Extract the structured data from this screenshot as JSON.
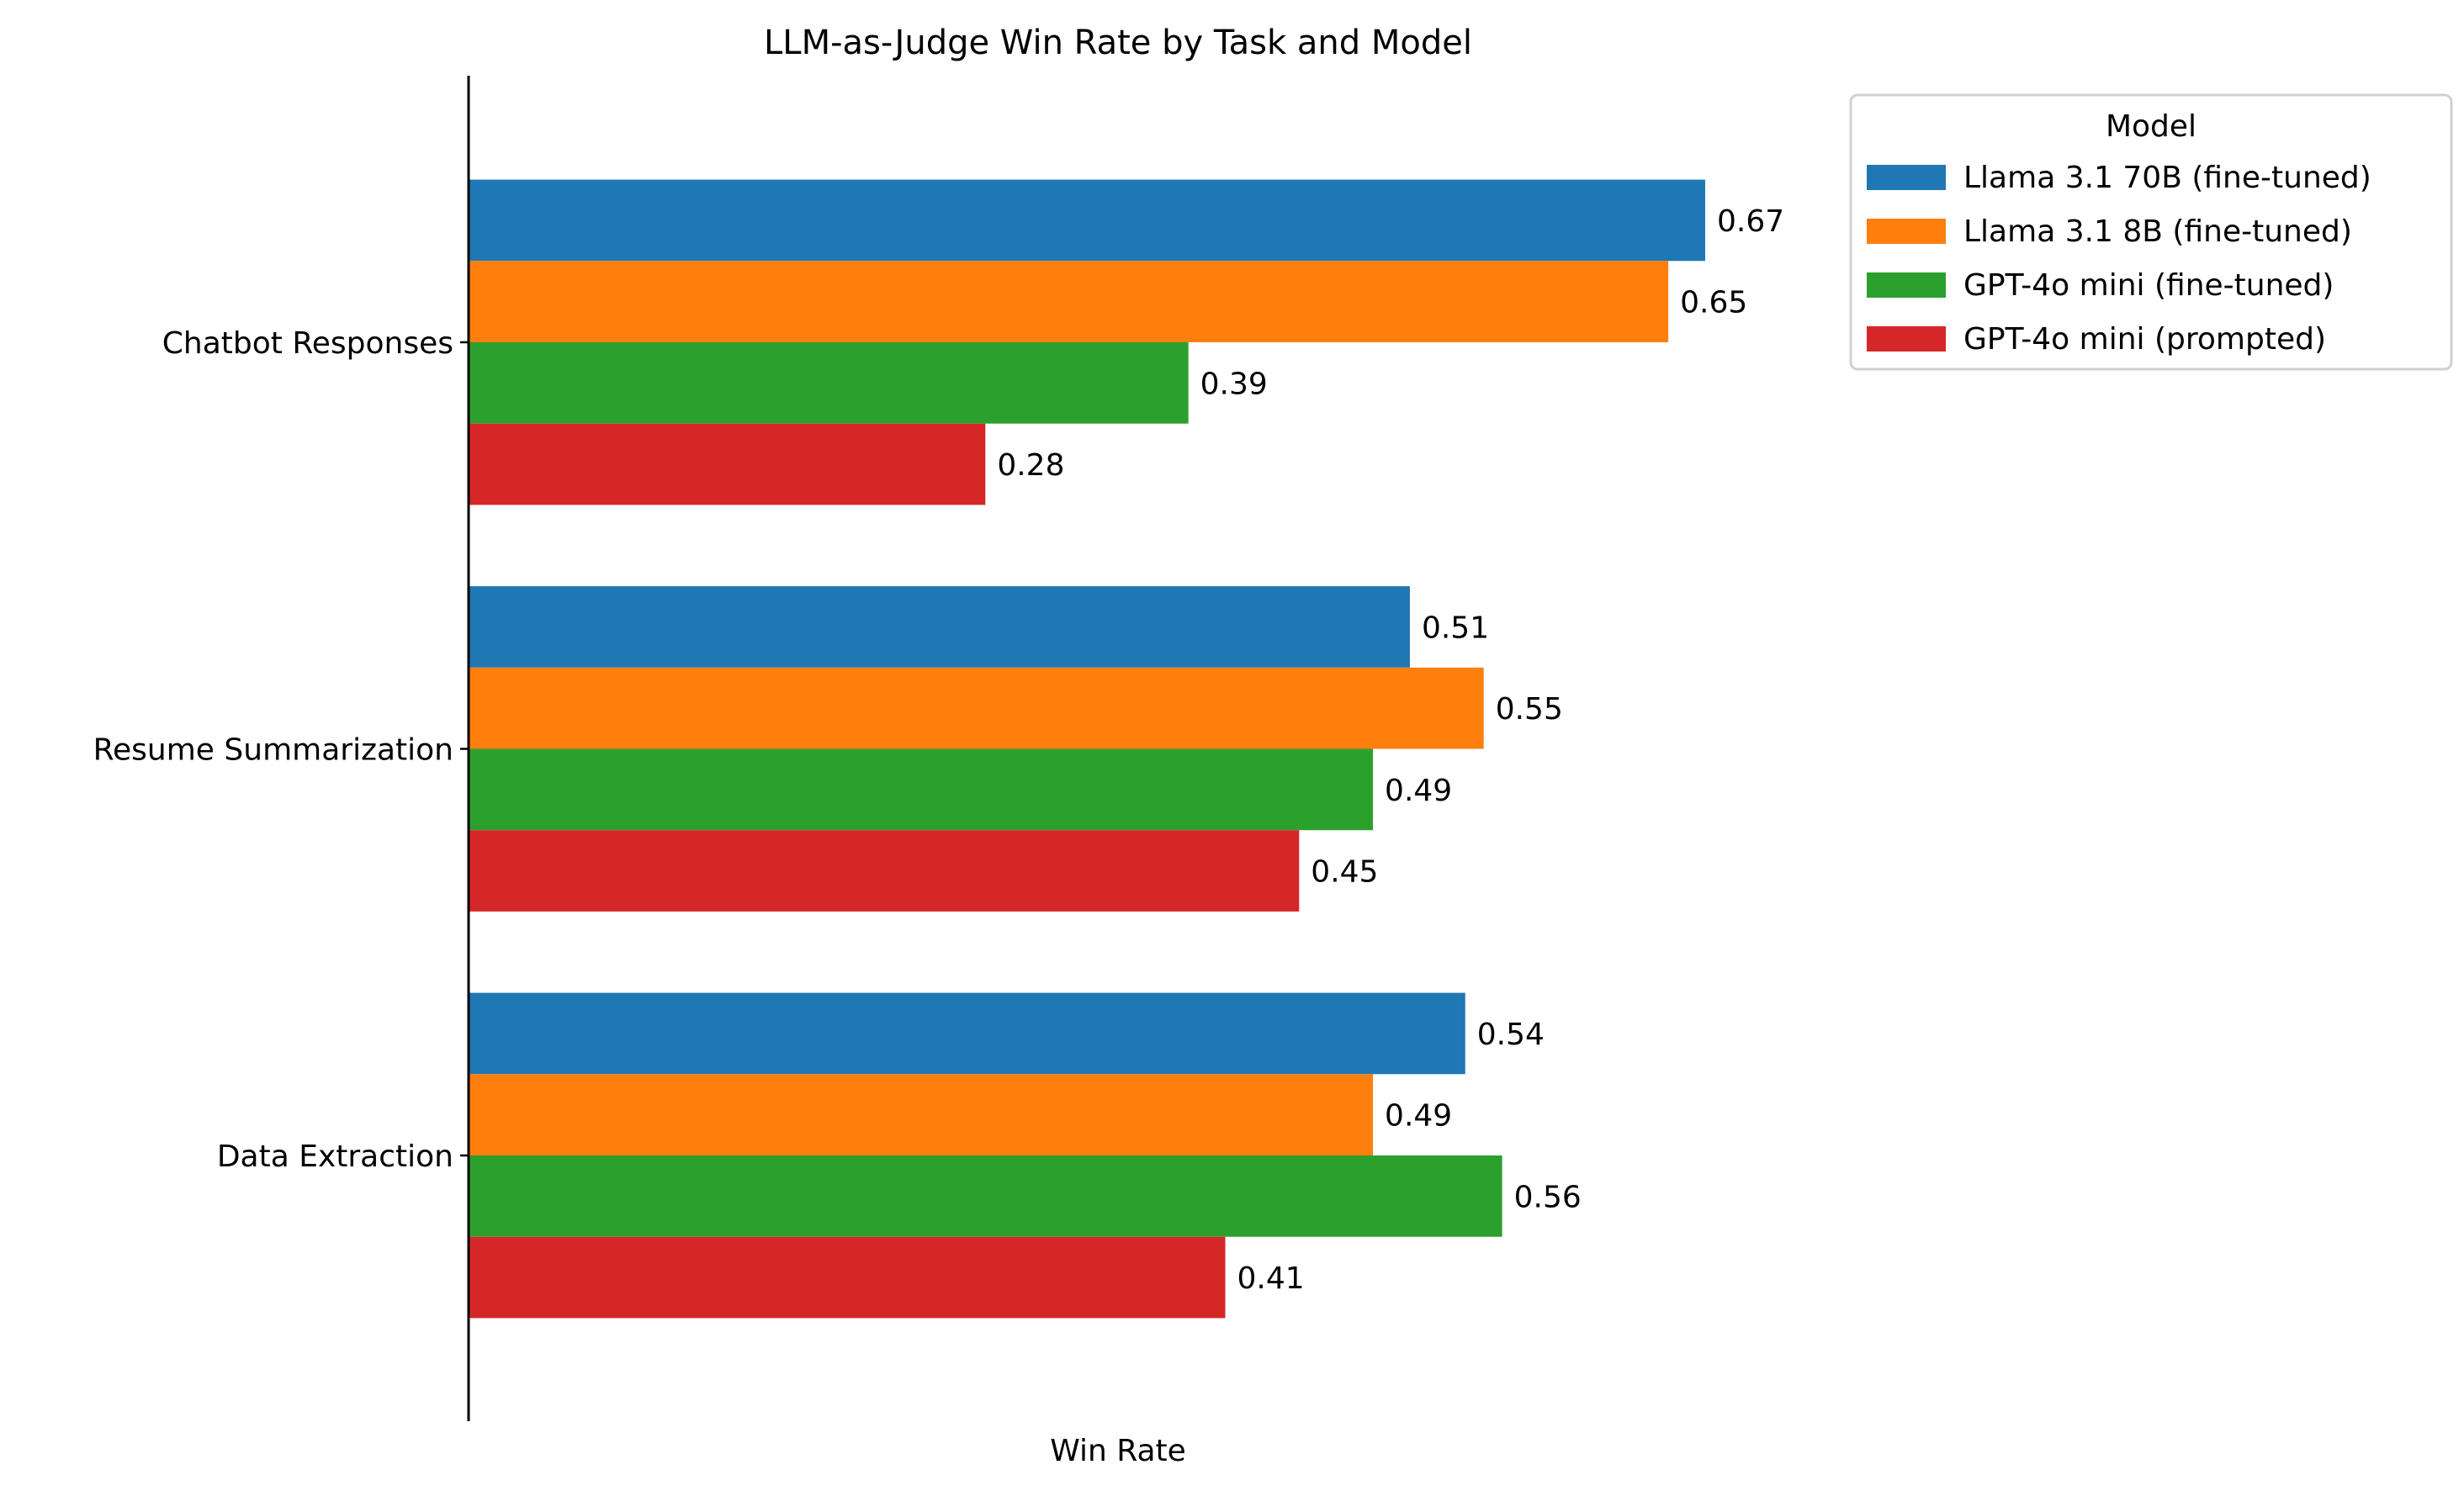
{
  "chart_data": {
    "type": "bar",
    "orientation": "horizontal",
    "title": "LLM-as-Judge Win Rate by Task and Model",
    "xlabel": "Win Rate",
    "ylabel": "",
    "categories": [
      "Chatbot Responses",
      "Resume Summarization",
      "Data Extraction"
    ],
    "series": [
      {
        "name": "Llama 3.1 70B (fine-tuned)",
        "color": "#1f77b4",
        "values": [
          0.67,
          0.51,
          0.54
        ],
        "labels": [
          "0.67",
          "0.51",
          "0.54"
        ]
      },
      {
        "name": "Llama 3.1 8B (fine-tuned)",
        "color": "#ff7f0e",
        "values": [
          0.65,
          0.55,
          0.49
        ],
        "labels": [
          "0.65",
          "0.55",
          "0.49"
        ]
      },
      {
        "name": "GPT-4o mini (fine-tuned)",
        "color": "#2ca02c",
        "values": [
          0.39,
          0.49,
          0.56
        ],
        "labels": [
          "0.39",
          "0.49",
          "0.56"
        ]
      },
      {
        "name": "GPT-4o mini (prompted)",
        "color": "#d62728",
        "values": [
          0.28,
          0.45,
          0.41
        ],
        "labels": [
          "0.28",
          "0.45",
          "0.41"
        ]
      }
    ],
    "xlim": [
      0,
      0.7
    ],
    "x_ticks_visible": false,
    "grid": false,
    "legend": {
      "title": "Model",
      "placement": "outside-top-right"
    }
  }
}
